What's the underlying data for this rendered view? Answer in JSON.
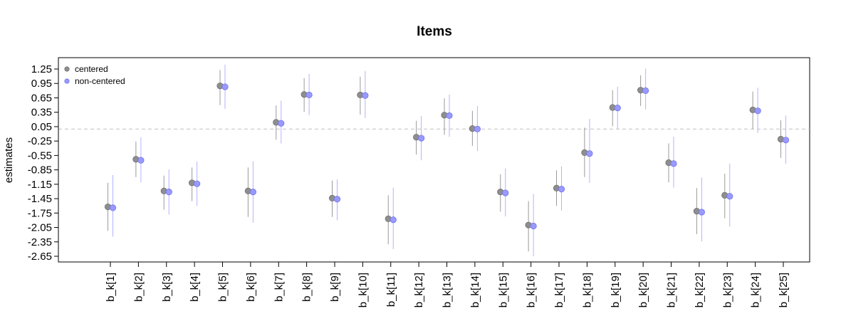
{
  "chart_data": {
    "type": "scatter",
    "title": "Items",
    "xlabel": "",
    "ylabel": "estimates",
    "ylim": [
      -2.65,
      1.25
    ],
    "yticks": [
      "1.25",
      "0.95",
      "0.65",
      "0.35",
      "0.05",
      "-0.25",
      "-0.55",
      "-0.85",
      "-1.15",
      "-1.45",
      "-1.75",
      "-2.05",
      "-2.35",
      "-2.65"
    ],
    "reference_line": 0,
    "grid": false,
    "legend_position": "top-left",
    "categories": [
      "b_k[1]",
      "b_k[2]",
      "b_k[3]",
      "b_k[4]",
      "b_k[5]",
      "b_k[6]",
      "b_k[7]",
      "b_k[8]",
      "b_k[9]",
      "b_k[10]",
      "b_k[11]",
      "b_k[12]",
      "b_k[13]",
      "b_k[14]",
      "b_k[15]",
      "b_k[16]",
      "b_k[17]",
      "b_k[18]",
      "b_k[19]",
      "b_k[20]",
      "b_k[21]",
      "b_k[22]",
      "b_k[23]",
      "b_k[24]",
      "b_k[25]"
    ],
    "series": [
      {
        "name": "centered",
        "color": "#8c8c8c",
        "values": [
          -1.62,
          -0.63,
          -1.29,
          -1.12,
          0.9,
          -1.29,
          0.14,
          0.72,
          -1.44,
          0.71,
          -1.87,
          -0.17,
          0.29,
          0.01,
          -1.31,
          -2.0,
          -1.23,
          -0.49,
          0.45,
          0.81,
          -0.7,
          -1.71,
          -1.38,
          0.4,
          -0.21
        ],
        "lower": [
          -2.12,
          -1.0,
          -1.68,
          -1.5,
          0.5,
          -1.83,
          -0.22,
          0.36,
          -1.83,
          0.3,
          -2.4,
          -0.53,
          -0.12,
          -0.35,
          -1.72,
          -2.55,
          -1.6,
          -1.0,
          0.06,
          0.48,
          -1.11,
          -2.19,
          -1.86,
          0.0,
          -0.6
        ],
        "upper": [
          -1.12,
          -0.26,
          -0.97,
          -0.8,
          1.23,
          -0.8,
          0.49,
          1.06,
          -1.07,
          1.09,
          -1.38,
          0.17,
          0.64,
          0.38,
          -0.94,
          -1.5,
          -0.86,
          0.03,
          0.81,
          1.12,
          -0.3,
          -1.23,
          -0.93,
          0.78,
          0.18
        ]
      },
      {
        "name": "non-centered",
        "color": "#7b7bff",
        "values": [
          -1.64,
          -0.65,
          -1.31,
          -1.14,
          0.88,
          -1.31,
          0.12,
          0.71,
          -1.46,
          0.7,
          -1.89,
          -0.19,
          0.28,
          0.0,
          -1.33,
          -2.02,
          -1.25,
          -0.51,
          0.44,
          0.8,
          -0.72,
          -1.73,
          -1.4,
          0.38,
          -0.23
        ],
        "lower": [
          -2.24,
          -1.11,
          -1.78,
          -1.6,
          0.42,
          -1.95,
          -0.3,
          0.29,
          -1.9,
          0.23,
          -2.5,
          -0.65,
          -0.16,
          -0.46,
          -1.82,
          -2.65,
          -1.7,
          -1.12,
          0.0,
          0.41,
          -1.22,
          -2.34,
          -2.03,
          -0.08,
          -0.72
        ],
        "upper": [
          -0.96,
          -0.17,
          -0.84,
          -0.68,
          1.34,
          -0.67,
          0.59,
          1.15,
          -1.05,
          1.21,
          -1.22,
          0.27,
          0.72,
          0.48,
          -0.82,
          -1.35,
          -0.78,
          0.21,
          0.88,
          1.26,
          -0.16,
          -1.01,
          -0.72,
          0.86,
          0.28
        ]
      }
    ]
  }
}
